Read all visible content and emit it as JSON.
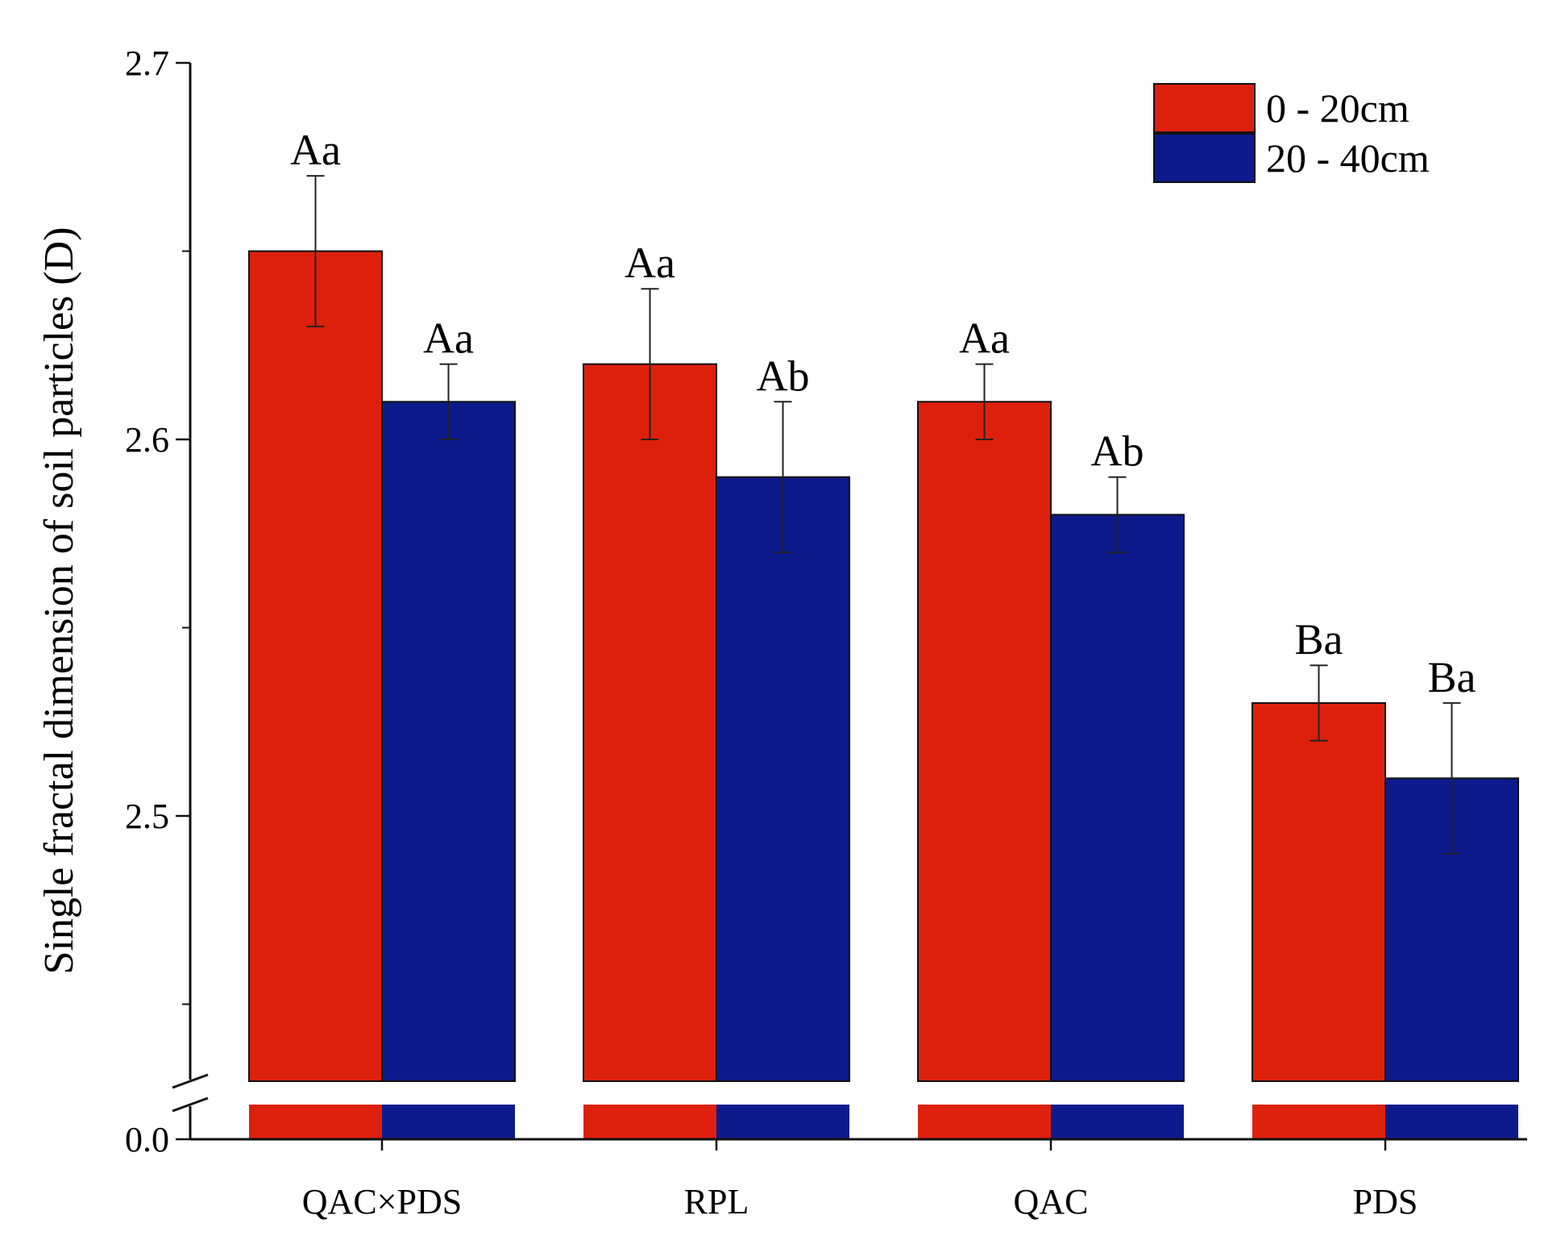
{
  "chart_data": {
    "type": "bar",
    "title": "",
    "xlabel": "",
    "ylabel": "Single fractal dimension of soil particles (D)",
    "categories": [
      "QAC×PDS",
      "RPL",
      "QAC",
      "PDS"
    ],
    "series": [
      {
        "name": "0 - 20cm",
        "color": "#dd200c",
        "values": [
          2.65,
          2.62,
          2.61,
          2.53
        ],
        "errors": [
          0.02,
          0.02,
          0.01,
          0.01
        ],
        "labels": [
          "Aa",
          "Aa",
          "Aa",
          "Ba"
        ]
      },
      {
        "name": "20 - 40cm",
        "color": "#0d1a8c",
        "values": [
          2.61,
          2.59,
          2.58,
          2.51
        ],
        "errors": [
          0.01,
          0.02,
          0.01,
          0.02
        ],
        "labels": [
          "Aa",
          "Ab",
          "Ab",
          "Ba"
        ]
      }
    ],
    "axis_break": true,
    "ylim_lower_segment": [
      0.0,
      0.1
    ],
    "ylim_upper_segment": [
      2.42,
      2.7
    ],
    "yticks": [
      {
        "value": 0.0,
        "label": "0.0"
      },
      {
        "value": 2.5,
        "label": "2.5"
      },
      {
        "value": 2.6,
        "label": "2.6"
      },
      {
        "value": 2.7,
        "label": "2.7"
      }
    ],
    "legend_position": "top-right",
    "grid": false
  }
}
